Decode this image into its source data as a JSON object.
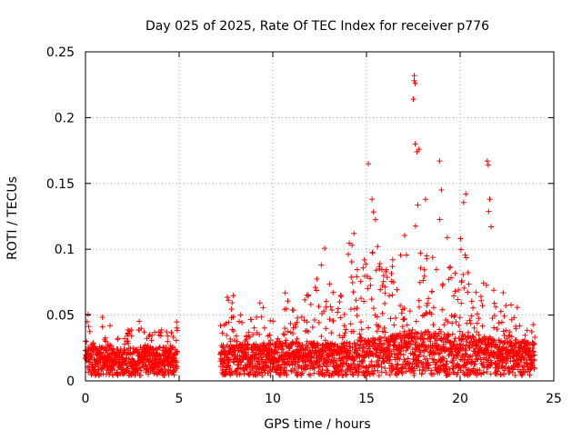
{
  "chart_data": {
    "type": "scatter",
    "title": "Day 025 of 2025, Rate Of TEC Index for receiver p776",
    "xlabel": "GPS time / hours",
    "ylabel": "ROTI / TECUs",
    "xlim": [
      0,
      25
    ],
    "ylim": [
      0,
      0.25
    ],
    "xticks": [
      "0",
      "5",
      "10",
      "15",
      "20",
      "25"
    ],
    "yticks": [
      "0",
      "0.05",
      "0.1",
      "0.15",
      "0.2",
      "0.25"
    ],
    "grid": true,
    "marker": "+",
    "marker_color": "#ff0000",
    "data_gap": [
      5.0,
      7.1
    ],
    "envelope": [
      {
        "x": 0.0,
        "base": 0.015,
        "top": 0.06
      },
      {
        "x": 0.5,
        "base": 0.014,
        "top": 0.04
      },
      {
        "x": 1.0,
        "base": 0.014,
        "top": 0.058
      },
      {
        "x": 1.5,
        "base": 0.013,
        "top": 0.04
      },
      {
        "x": 2.0,
        "base": 0.013,
        "top": 0.03
      },
      {
        "x": 2.6,
        "base": 0.013,
        "top": 0.055
      },
      {
        "x": 3.2,
        "base": 0.014,
        "top": 0.035
      },
      {
        "x": 3.8,
        "base": 0.014,
        "top": 0.045
      },
      {
        "x": 4.5,
        "base": 0.014,
        "top": 0.035
      },
      {
        "x": 4.9,
        "base": 0.014,
        "top": 0.05
      },
      {
        "x": 7.2,
        "base": 0.015,
        "top": 0.045
      },
      {
        "x": 7.6,
        "base": 0.016,
        "top": 0.075
      },
      {
        "x": 8.5,
        "base": 0.016,
        "top": 0.045
      },
      {
        "x": 9.3,
        "base": 0.016,
        "top": 0.06
      },
      {
        "x": 10.0,
        "base": 0.017,
        "top": 0.045
      },
      {
        "x": 10.5,
        "base": 0.018,
        "top": 0.068
      },
      {
        "x": 11.5,
        "base": 0.018,
        "top": 0.06
      },
      {
        "x": 12.0,
        "base": 0.018,
        "top": 0.075
      },
      {
        "x": 12.8,
        "base": 0.017,
        "top": 0.105
      },
      {
        "x": 13.5,
        "base": 0.017,
        "top": 0.06
      },
      {
        "x": 14.2,
        "base": 0.018,
        "top": 0.12
      },
      {
        "x": 15.0,
        "base": 0.02,
        "top": 0.09
      },
      {
        "x": 15.4,
        "base": 0.02,
        "top": 0.135
      },
      {
        "x": 16.0,
        "base": 0.022,
        "top": 0.09
      },
      {
        "x": 16.6,
        "base": 0.024,
        "top": 0.1
      },
      {
        "x": 17.2,
        "base": 0.025,
        "top": 0.13
      },
      {
        "x": 17.6,
        "base": 0.026,
        "top": 0.18
      },
      {
        "x": 18.0,
        "base": 0.026,
        "top": 0.16
      },
      {
        "x": 18.5,
        "base": 0.025,
        "top": 0.09
      },
      {
        "x": 19.0,
        "base": 0.024,
        "top": 0.145
      },
      {
        "x": 19.6,
        "base": 0.024,
        "top": 0.08
      },
      {
        "x": 20.2,
        "base": 0.024,
        "top": 0.14
      },
      {
        "x": 20.8,
        "base": 0.022,
        "top": 0.075
      },
      {
        "x": 21.5,
        "base": 0.021,
        "top": 0.165
      },
      {
        "x": 22.0,
        "base": 0.02,
        "top": 0.06
      },
      {
        "x": 22.6,
        "base": 0.02,
        "top": 0.065
      },
      {
        "x": 23.2,
        "base": 0.019,
        "top": 0.055
      },
      {
        "x": 24.0,
        "base": 0.018,
        "top": 0.045
      }
    ],
    "outliers": [
      {
        "x": 15.1,
        "y": 0.165
      },
      {
        "x": 17.55,
        "y": 0.232
      },
      {
        "x": 17.55,
        "y": 0.228
      },
      {
        "x": 17.6,
        "y": 0.226
      },
      {
        "x": 17.5,
        "y": 0.214
      },
      {
        "x": 17.6,
        "y": 0.18
      },
      {
        "x": 17.8,
        "y": 0.176
      },
      {
        "x": 18.9,
        "y": 0.167
      },
      {
        "x": 21.45,
        "y": 0.167
      },
      {
        "x": 21.5,
        "y": 0.164
      },
      {
        "x": 19.0,
        "y": 0.145
      },
      {
        "x": 20.3,
        "y": 0.142
      },
      {
        "x": 15.3,
        "y": 0.138
      },
      {
        "x": 22.3,
        "y": 0.067
      }
    ]
  }
}
